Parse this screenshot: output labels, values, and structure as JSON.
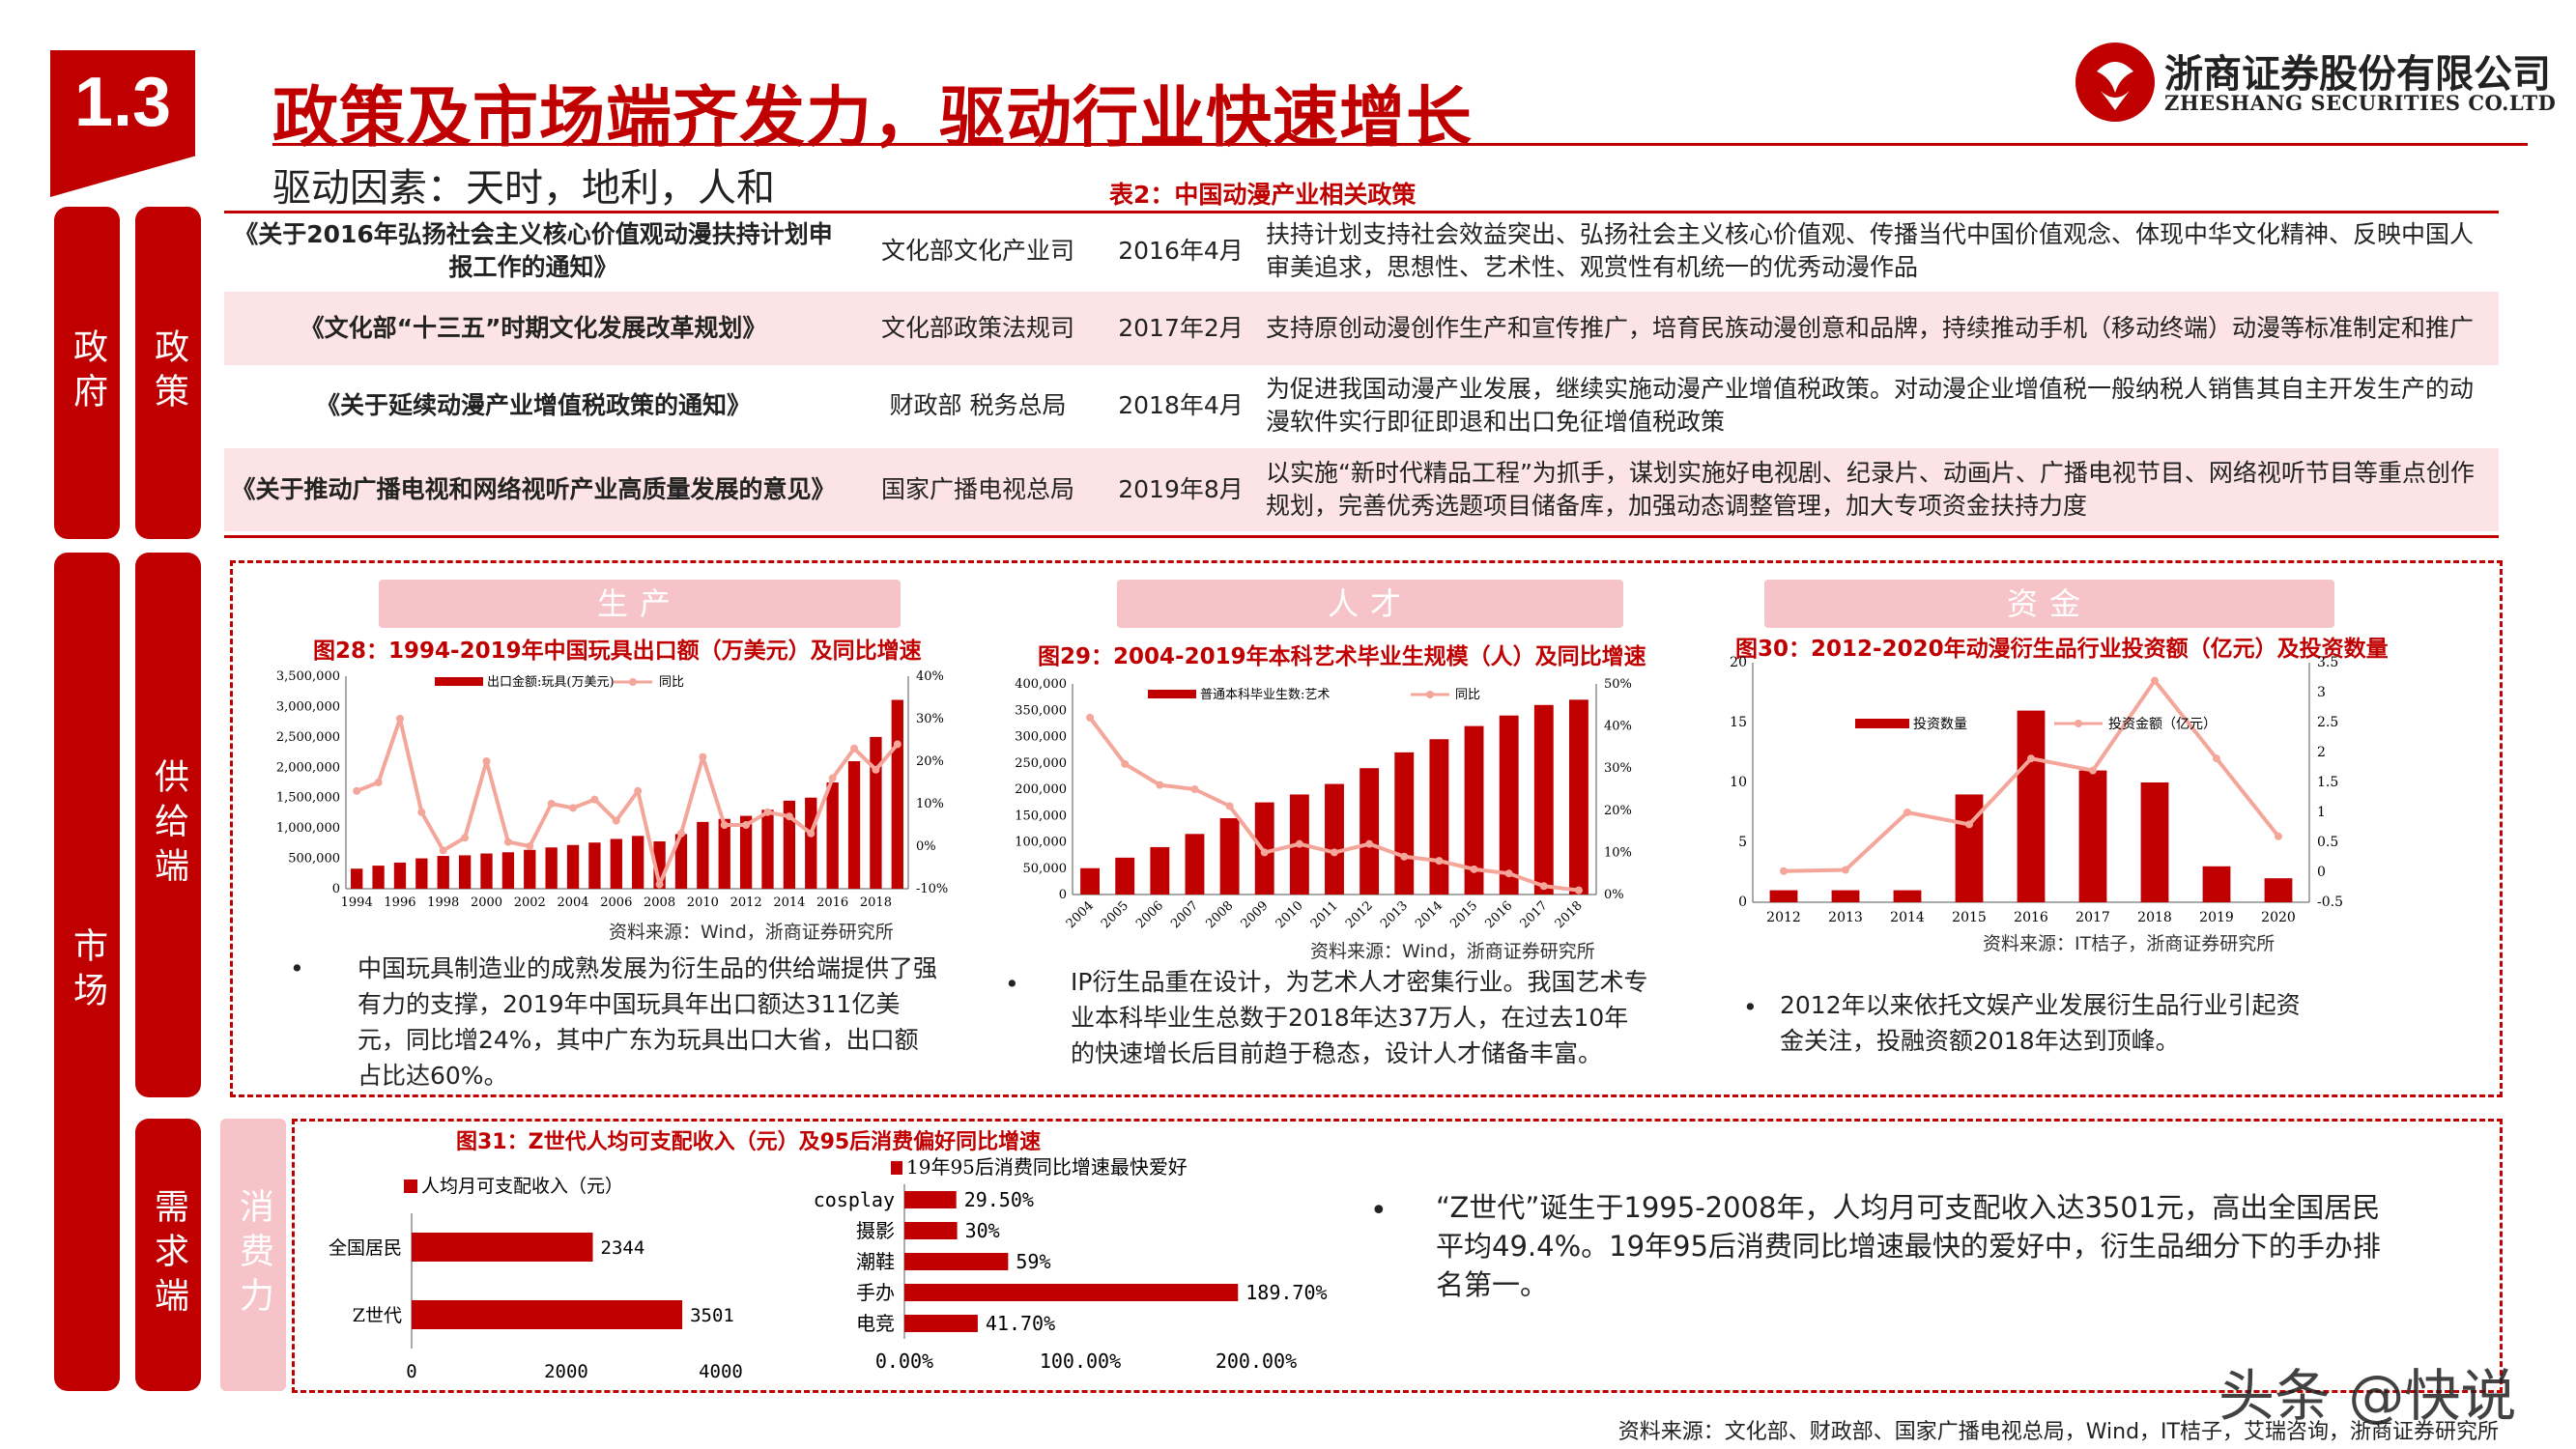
{
  "header": {
    "section_number": "1.3",
    "title": "政策及市场端齐发力，驱动行业快速增长",
    "subtitle": "驱动因素：天时，地利，人和",
    "company_cn": "浙商证券股份有限公司",
    "company_en": "ZHESHANG SECURITIES CO.LTD"
  },
  "side_labels": {
    "government": "政府",
    "policy": "政策",
    "market": "市场",
    "supply": "供给端",
    "demand": "需求端",
    "consumption": "消费力"
  },
  "policy_table": {
    "title": "表2：中国动漫产业相关政策",
    "rows": [
      {
        "name": "《关于2016年弘扬社会主义核心价值观动漫扶持计划申报工作的通知》",
        "dept": "文化部文化产业司",
        "date": "2016年4月",
        "content": "扶持计划支持社会效益突出、弘扬社会主义核心价值观、传播当代中国价值观念、体现中华文化精神、反映中国人审美追求，思想性、艺术性、观赏性有机统一的优秀动漫作品"
      },
      {
        "name": "《文化部“十三五”时期文化发展改革规划》",
        "dept": "文化部政策法规司",
        "date": "2017年2月",
        "content": "支持原创动漫创作生产和宣传推广，培育民族动漫创意和品牌，持续推动手机（移动终端）动漫等标准制定和推广"
      },
      {
        "name": "《关于延续动漫产业增值税政策的通知》",
        "dept": "财政部 税务总局",
        "date": "2018年4月",
        "content": "为促进我国动漫产业发展，继续实施动漫产业增值税政策。对动漫企业增值税一般纳税人销售其自主开发生产的动漫软件实行即征即退和出口免征增值税政策"
      },
      {
        "name": "《关于推动广播电视和网络视听产业高质量发展的意见》",
        "dept": "国家广播电视总局",
        "date": "2019年8月",
        "content": "以实施“新时代精品工程”为抓手，谋划实施好电视剧、纪录片、动画片、广播电视节目、网络视听节目等重点创作规划，完善优秀选题项目储备库，加强动态调整管理，加大专项资金扶持力度"
      }
    ]
  },
  "supply": {
    "panels": [
      {
        "pill": "生产",
        "fig_title": "图28：1994-2019年中国玩具出口额（万美元）及同比增速",
        "source": "资料来源：Wind，浙商证券研究所",
        "bullet": "中国玩具制造业的成熟发展为衍生品的供给端提供了强有力的支撑，2019年中国玩具年出口额达311亿美元，同比增24%，其中广东为玩具出口大省，出口额占比达60%。"
      },
      {
        "pill": "人才",
        "fig_title": "图29：2004-2019年本科艺术毕业生规模（人）及同比增速",
        "source": "资料来源：Wind，浙商证券研究所",
        "bullet": "IP衍生品重在设计，为艺术人才密集行业。我国艺术专业本科毕业生总数于2018年达37万人，在过去10年的快速增长后目前趋于稳态，设计人才储备丰富。"
      },
      {
        "pill": "资金",
        "fig_title": "图30：2012-2020年动漫衍生品行业投资额（亿元）及投资数量",
        "source": "资料来源：IT桔子，浙商证券研究所",
        "bullet": "2012年以来依托文娱产业发展衍生品行业引起资金关注，投融资额2018年达到顶峰。"
      }
    ]
  },
  "demand": {
    "fig_title": "图31：Z世代人均可支配收入（元）及95后消费偏好同比增速",
    "bullet": "“Z世代”诞生于1995-2008年，人均月可支配收入达3501元，高出全国居民平均49.4%。19年95后消费同比增速最快的爱好中，衍生品细分下的手办排名第一。"
  },
  "chart_data": [
    {
      "type": "bar",
      "id": "toy-export",
      "title": "图28：1994-2019年中国玩具出口额（万美元）及同比增速",
      "series": [
        {
          "name": "出口金额:玩具(万美元)",
          "type": "bar",
          "axis": "left",
          "color": "#c00000",
          "values": [
            330000,
            380000,
            430000,
            500000,
            540000,
            550000,
            580000,
            600000,
            640000,
            680000,
            720000,
            760000,
            820000,
            870000,
            780000,
            900000,
            1100000,
            1150000,
            1200000,
            1300000,
            1450000,
            1500000,
            1750000,
            2100000,
            2500000,
            3110000
          ]
        },
        {
          "name": "同比",
          "type": "line",
          "axis": "right",
          "color": "#f4a69a",
          "values": [
            13,
            15,
            30,
            8,
            -1,
            2,
            20,
            1,
            0,
            10,
            9,
            11,
            6,
            13,
            -9,
            3,
            21,
            5,
            5,
            8,
            7,
            3,
            16,
            23,
            18,
            24
          ]
        }
      ],
      "x": [
        1994,
        1995,
        1996,
        1997,
        1998,
        1999,
        2000,
        2001,
        2002,
        2003,
        2004,
        2005,
        2006,
        2007,
        2008,
        2009,
        2010,
        2011,
        2012,
        2013,
        2014,
        2015,
        2016,
        2017,
        2018,
        2019
      ],
      "x_tick_labels": [
        "1994",
        "1996",
        "1998",
        "2000",
        "2002",
        "2004",
        "2006",
        "2008",
        "2010",
        "2012",
        "2014",
        "2016",
        "2018"
      ],
      "y_left_ticks": [
        "0",
        "500,000",
        "1,000,000",
        "1,500,000",
        "2,000,000",
        "2,500,000",
        "3,000,000",
        "3,500,000"
      ],
      "y_right_ticks": [
        "-10%",
        "0%",
        "10%",
        "20%",
        "30%",
        "40%"
      ],
      "ylim": [
        0,
        3500000
      ],
      "y2lim": [
        -10,
        40
      ]
    },
    {
      "type": "bar",
      "id": "art-grads",
      "title": "图29：2004-2019年本科艺术毕业生规模（人）及同比增速",
      "series": [
        {
          "name": "普通本科毕业生数:艺术",
          "type": "bar",
          "axis": "left",
          "color": "#c00000",
          "values": [
            50000,
            70000,
            90000,
            115000,
            145000,
            175000,
            190000,
            210000,
            240000,
            270000,
            295000,
            320000,
            340000,
            360000,
            370000
          ]
        },
        {
          "name": "同比",
          "type": "line",
          "axis": "right",
          "color": "#f4a69a",
          "values": [
            42,
            31,
            26,
            25,
            21,
            10,
            12,
            10,
            12,
            9,
            8,
            6,
            5,
            2,
            1
          ]
        }
      ],
      "x": [
        "2004",
        "2005",
        "2006",
        "2007",
        "2008",
        "2009",
        "2010",
        "2011",
        "2012",
        "2013",
        "2014",
        "2015",
        "2016",
        "2017",
        "2018"
      ],
      "y_left_ticks": [
        "0",
        "50,000",
        "100,000",
        "150,000",
        "200,000",
        "250,000",
        "300,000",
        "350,000",
        "400,000"
      ],
      "y_right_ticks": [
        "0%",
        "10%",
        "20%",
        "30%",
        "40%",
        "50%"
      ],
      "ylim": [
        0,
        400000
      ],
      "y2lim": [
        0,
        50
      ]
    },
    {
      "type": "bar",
      "id": "investment",
      "title": "图30：2012-2020年动漫衍生品行业投资额（亿元）及投资数量",
      "series": [
        {
          "name": "投资数量",
          "type": "bar",
          "axis": "left",
          "color": "#c00000",
          "values": [
            1,
            1,
            1,
            9,
            16,
            11,
            10,
            3,
            2
          ]
        },
        {
          "name": "投资金额（亿元）",
          "type": "line",
          "axis": "right",
          "color": "#f4a69a",
          "values": [
            0.02,
            0.04,
            1.0,
            0.8,
            1.9,
            1.7,
            3.2,
            1.9,
            0.6
          ]
        }
      ],
      "x": [
        "2012",
        "2013",
        "2014",
        "2015",
        "2016",
        "2017",
        "2018",
        "2019",
        "2020"
      ],
      "y_left_ticks": [
        "0",
        "5",
        "10",
        "15",
        "20"
      ],
      "y_right_ticks": [
        "-0.5",
        "0",
        "0.5",
        "1",
        "1.5",
        "2",
        "2.5",
        "3",
        "3.5"
      ],
      "ylim": [
        0,
        20
      ],
      "y2lim": [
        -0.5,
        3.5
      ]
    },
    {
      "type": "bar",
      "id": "income",
      "orientation": "horizontal",
      "series": [
        {
          "name": "人均月可支配收入（元）",
          "color": "#c00000",
          "values": [
            2344,
            3501
          ]
        }
      ],
      "categories": [
        "全国居民",
        "Z世代"
      ],
      "data_labels": [
        "2344",
        "3501"
      ],
      "x_ticks": [
        "0",
        "2000",
        "4000"
      ],
      "xlim": [
        0,
        4000
      ]
    },
    {
      "type": "bar",
      "id": "hobbies",
      "orientation": "horizontal",
      "series": [
        {
          "name": "19年95后消费同比增速最快爱好",
          "color": "#c00000",
          "values": [
            29.5,
            30,
            59,
            189.7,
            41.7
          ]
        }
      ],
      "categories": [
        "cosplay",
        "摄影",
        "潮鞋",
        "手办",
        "电竞"
      ],
      "data_labels": [
        "29.50%",
        "30%",
        "59%",
        "189.70%",
        "41.70%"
      ],
      "x_ticks": [
        "0.00%",
        "100.00%",
        "200.00%"
      ],
      "xlim": [
        0,
        200
      ]
    }
  ],
  "footer": {
    "source": "资料来源：文化部、财政部、国家广播电视总局，Wind，IT桔子，艾瑞咨询，浙商证券研究所",
    "watermark": "头条 @快说"
  },
  "colors": {
    "accent": "#c00000",
    "pink": "#f6c3c8",
    "line": "#f4a69a",
    "row_tint": "#fbe3e6"
  }
}
